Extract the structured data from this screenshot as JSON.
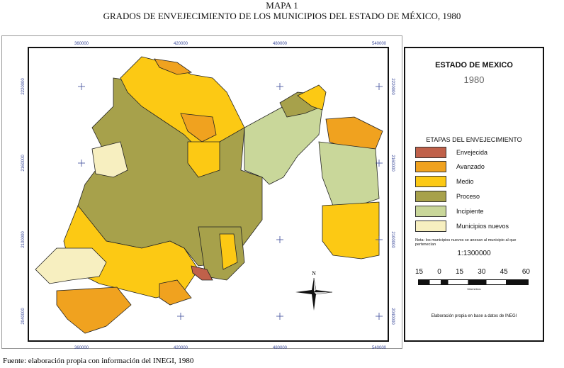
{
  "header": {
    "map_number": "MAPA 1",
    "title": "GRADOS DE ENVEJECIMIENTO  DE LOS MUNICIPIOS DEL ESTADO DE MÉXICO, 1980"
  },
  "axes": {
    "x_labels": [
      "360000",
      "420000",
      "480000",
      "540000"
    ],
    "y_labels": [
      "2220000",
      "2160000",
      "2100000",
      "2040000"
    ]
  },
  "north_label": "N",
  "legend": {
    "title": "ESTADO DE MEXICO",
    "year": "1980",
    "heading": "ETAPAS DEL ENVEJECIMIENTO",
    "items": [
      {
        "label": "Envejecida",
        "color": "#c0614a"
      },
      {
        "label": "Avanzado",
        "color": "#f0a21f"
      },
      {
        "label": "Medio",
        "color": "#fcc914"
      },
      {
        "label": "Proceso",
        "color": "#a7a14b"
      },
      {
        "label": "Incipiente",
        "color": "#c9d79a"
      },
      {
        "label": "Municipios nuevos",
        "color": "#f7efc0"
      }
    ],
    "note": "Nota: los municipios nuevos se anexan al municipio al que pertenecían",
    "scale": "1:1300000",
    "scale_ticks": [
      "15",
      "0",
      "15",
      "30",
      "45",
      "60"
    ],
    "scale_unit": "Kilometros",
    "credit": "Elaboración propia en base a datos de INEGI"
  },
  "footer": "Fuente: elaboración propia con información del INEGI, 1980"
}
